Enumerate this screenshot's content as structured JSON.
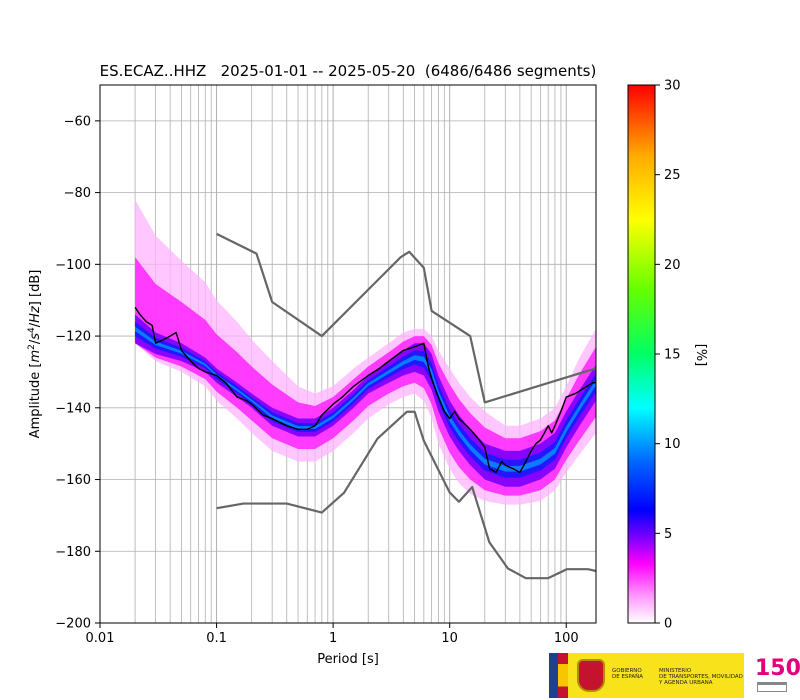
{
  "chart_data": {
    "type": "heatmap",
    "title": "ES.ECAZ..HHZ   2025-01-01 -- 2025-05-20  (6486/6486 segments)",
    "xlabel": "Period [s]",
    "ylabel": "Amplitude [m2/s4/Hz] [dB]",
    "x_scale": "log",
    "xlim": [
      0.01,
      180
    ],
    "ylim": [
      -200,
      -50
    ],
    "x_ticks": [
      0.01,
      0.1,
      1,
      10,
      100
    ],
    "x_tick_labels": [
      "0.01",
      "0.1",
      "1",
      "10",
      "100"
    ],
    "y_ticks": [
      -200,
      -180,
      -160,
      -140,
      -120,
      -100,
      -80,
      -60
    ],
    "y_tick_labels": [
      "−200",
      "−180",
      "−160",
      "−140",
      "−120",
      "−100",
      "−80",
      "−60"
    ],
    "grid": true,
    "colorbar": {
      "label": "[%]",
      "range": [
        0,
        30
      ],
      "ticks": [
        0,
        5,
        10,
        15,
        20,
        25,
        30
      ]
    },
    "density_bands": {
      "period": [
        0.02,
        0.03,
        0.05,
        0.08,
        0.1,
        0.15,
        0.2,
        0.3,
        0.5,
        0.7,
        1,
        1.5,
        2,
        3,
        4,
        5,
        6,
        7,
        8,
        10,
        12,
        15,
        20,
        30,
        40,
        60,
        80,
        100,
        130,
        180
      ],
      "upper_extent": [
        -82,
        -92,
        -99,
        -105,
        -110,
        -116,
        -121,
        -127,
        -134,
        -136,
        -134,
        -129,
        -126,
        -122,
        -119,
        -118,
        -118,
        -120,
        -124,
        -129,
        -133,
        -137,
        -141,
        -145,
        -145,
        -143,
        -140,
        -134,
        -126,
        -118
      ],
      "core_upper": [
        -114,
        -119,
        -122,
        -126,
        -129,
        -133,
        -136,
        -140,
        -143,
        -143,
        -140,
        -135,
        -131,
        -127,
        -124,
        -122,
        -122,
        -125,
        -131,
        -138,
        -142,
        -146,
        -150,
        -152,
        -152,
        -150,
        -147,
        -141,
        -135,
        -128
      ],
      "core_lower": [
        -122,
        -125,
        -127,
        -130,
        -133,
        -137,
        -140,
        -145,
        -148,
        -148,
        -145,
        -140,
        -136,
        -133,
        -131,
        -130,
        -131,
        -135,
        -141,
        -148,
        -152,
        -156,
        -160,
        -162,
        -162,
        -160,
        -157,
        -151,
        -145,
        -138
      ],
      "lower_extent": [
        -122,
        -127,
        -130,
        -134,
        -138,
        -143,
        -147,
        -152,
        -155,
        -155,
        -152,
        -147,
        -143,
        -139,
        -137,
        -136,
        -138,
        -143,
        -150,
        -157,
        -161,
        -164,
        -166,
        -167,
        -167,
        -166,
        -163,
        -158,
        -153,
        -147
      ]
    },
    "series": [
      {
        "x": [
          0.02,
          0.022,
          0.025,
          0.028,
          0.03,
          0.035,
          0.04,
          0.045,
          0.05,
          0.06,
          0.07,
          0.08,
          0.1,
          0.12,
          0.15,
          0.18,
          0.2,
          0.25,
          0.3,
          0.4,
          0.5,
          0.6,
          0.7,
          0.8,
          1,
          1.2,
          1.5,
          2,
          2.5,
          3,
          4,
          5,
          6,
          6.5,
          7,
          8,
          9,
          10,
          11,
          12,
          14,
          15,
          17,
          20,
          22,
          25,
          28,
          30,
          35,
          40,
          45,
          50,
          55,
          60,
          65,
          70,
          75,
          80,
          90,
          100,
          120,
          150,
          170,
          180
        ],
        "y": [
          -112,
          -114,
          -116,
          -117,
          -122,
          -121,
          -120,
          -119,
          -124,
          -127,
          -129,
          -130,
          -131,
          -133,
          -137,
          -138,
          -139,
          -142,
          -143,
          -145,
          -146,
          -146,
          -145,
          -142,
          -139,
          -137,
          -134,
          -131,
          -129,
          -127,
          -124,
          -123,
          -122,
          -128,
          -132,
          -137,
          -141,
          -143,
          -141,
          -143,
          -145,
          -146,
          -148,
          -151,
          -157,
          -158,
          -155,
          -156,
          -157,
          -158,
          -155,
          -152,
          -150,
          -149,
          -147,
          -145,
          -147,
          -145,
          -141,
          -137,
          -136,
          -134,
          -133,
          -133
        ]
      },
      {
        "x": [
          0.1,
          0.22,
          0.3,
          0.8,
          3.8,
          4.5,
          6,
          7,
          15,
          20,
          180
        ],
        "y": [
          -91.5,
          -97,
          -110.5,
          -120,
          -98,
          -96.5,
          -101,
          -113,
          -120,
          -138.5,
          -129
        ]
      },
      {
        "x": [
          0.1,
          0.17,
          0.4,
          0.8,
          1.24,
          2.4,
          4.3,
          5,
          6,
          10,
          12,
          15.6,
          21.9,
          31.6,
          45,
          70,
          101,
          154,
          180
        ],
        "y": [
          -168,
          -166.7,
          -166.7,
          -169.2,
          -163.7,
          -148.6,
          -141.1,
          -141.1,
          -149.2,
          -163.6,
          -166.2,
          -162.1,
          -177.5,
          -184.8,
          -187.5,
          -187.5,
          -185,
          -185,
          -185.5
        ]
      }
    ]
  },
  "logos": {
    "government": "GOBIERNO\nDE ESPAÑA",
    "ministry": "MINISTERIO\nDE TRANSPORTES, MOVILIDAD\nY AGENDA URBANA",
    "ign_mark": "150"
  }
}
